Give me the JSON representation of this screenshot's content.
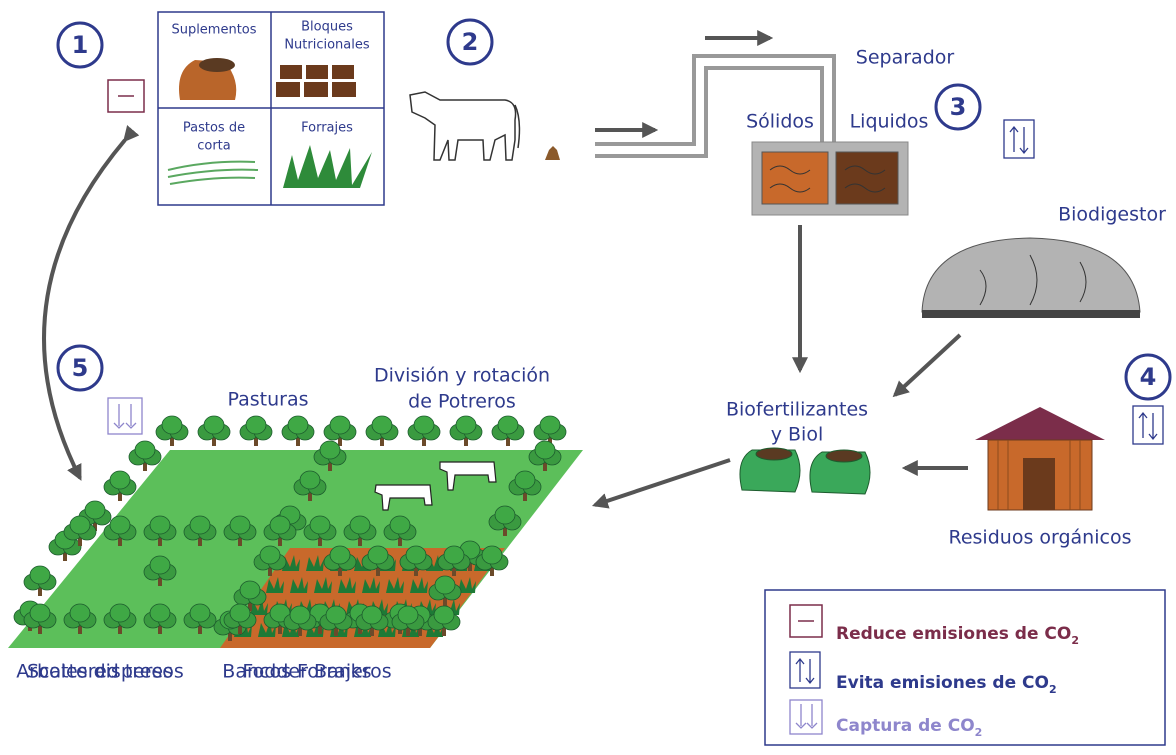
{
  "steps": [
    "1",
    "2",
    "3",
    "4",
    "5"
  ],
  "feed": {
    "supplements": "Suplementos",
    "blocks": [
      "Bloques",
      "Nutricionales"
    ],
    "cut_grass": [
      "Pastos de",
      "corta"
    ],
    "forage": "Forrajes"
  },
  "separator": {
    "title": "Separador",
    "solids": "Sólidos",
    "liquids": "Liquidos"
  },
  "biodigester": "Biodigestor",
  "biofertilizer": [
    "Biofertilizantes",
    "y Biol"
  ],
  "organic_waste": "Residuos orgánicos",
  "pasture": {
    "title": "Pasturas",
    "rotation": [
      "División y rotación",
      "de Potreros"
    ]
  },
  "bottom_labels": {
    "trees": [
      "Scattered trees",
      "Arboles dispersos"
    ],
    "banks": [
      "Fodder Banks",
      "Bancos Forrajeros"
    ]
  },
  "legend": [
    {
      "text": "Reduce emisiones de CO",
      "sub": "2"
    },
    {
      "text": "Evita emisiones de CO",
      "sub": "2"
    },
    {
      "text": "Captura de CO",
      "sub": "2"
    }
  ]
}
